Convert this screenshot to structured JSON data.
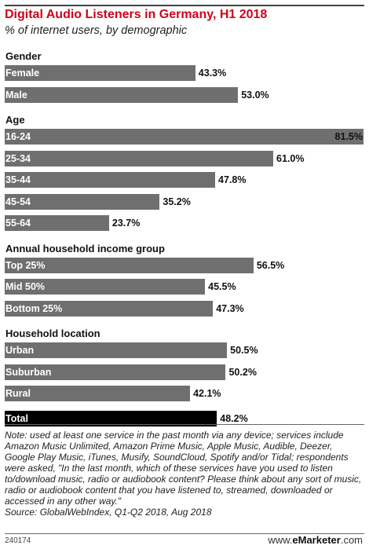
{
  "title": "Digital Audio Listeners in Germany, H1 2018",
  "subtitle": "% of internet users, by demographic",
  "chart_data": {
    "type": "bar",
    "orientation": "horizontal",
    "title": "Digital Audio Listeners in Germany, H1 2018",
    "subtitle": "% of internet users, by demographic",
    "xlim": [
      0,
      81.5
    ],
    "groups": [
      {
        "name": "Gender",
        "rows": [
          {
            "label": "Female",
            "value": 43.3,
            "display": "43.3%"
          },
          {
            "label": "Male",
            "value": 53.0,
            "display": "53.0%"
          }
        ]
      },
      {
        "name": "Age",
        "rows": [
          {
            "label": "16-24",
            "value": 81.5,
            "display": "81.5%"
          },
          {
            "label": "25-34",
            "value": 61.0,
            "display": "61.0%"
          },
          {
            "label": "35-44",
            "value": 47.8,
            "display": "47.8%"
          },
          {
            "label": "45-54",
            "value": 35.2,
            "display": "35.2%"
          },
          {
            "label": "55-64",
            "value": 23.7,
            "display": "23.7%"
          }
        ]
      },
      {
        "name": "Annual household income group",
        "rows": [
          {
            "label": "Top 25%",
            "value": 56.5,
            "display": "56.5%"
          },
          {
            "label": "Mid 50%",
            "value": 45.5,
            "display": "45.5%"
          },
          {
            "label": "Bottom 25%",
            "value": 47.3,
            "display": "47.3%"
          }
        ]
      },
      {
        "name": "Household location",
        "rows": [
          {
            "label": "Urban",
            "value": 50.5,
            "display": "50.5%"
          },
          {
            "label": "Suburban",
            "value": 50.2,
            "display": "50.2%"
          },
          {
            "label": "Rural",
            "value": 42.1,
            "display": "42.1%"
          }
        ]
      },
      {
        "name": "",
        "rows": [
          {
            "label": "Total",
            "value": 48.2,
            "display": "48.2%",
            "highlight": true
          }
        ]
      }
    ],
    "colors": {
      "bar": "#6f6f6f",
      "total_bar": "#000000",
      "title": "#d0021b"
    }
  },
  "notes": {
    "note": "Note: used at least one service in the past month via any device; services include Amazon Music Unlimited, Amazon Prime Music, Apple Music, Audible, Deezer, Google Play Music, iTunes, Musify, SoundCloud, Spotify and/or Tidal; respondents were asked, \"In the last month, which of these services have you used to listen to/download music, radio or audiobook content? Please think about any sort of music, radio or audiobook content that you have listened to, streamed, downloaded or accessed in any other way.\"",
    "source": "Source: GlobalWebIndex, Q1-Q2 2018, Aug 2018"
  },
  "footer": {
    "chart_id": "240174",
    "brand_prefix": "www.",
    "brand_name": "eMarketer",
    "brand_suffix": ".com"
  }
}
